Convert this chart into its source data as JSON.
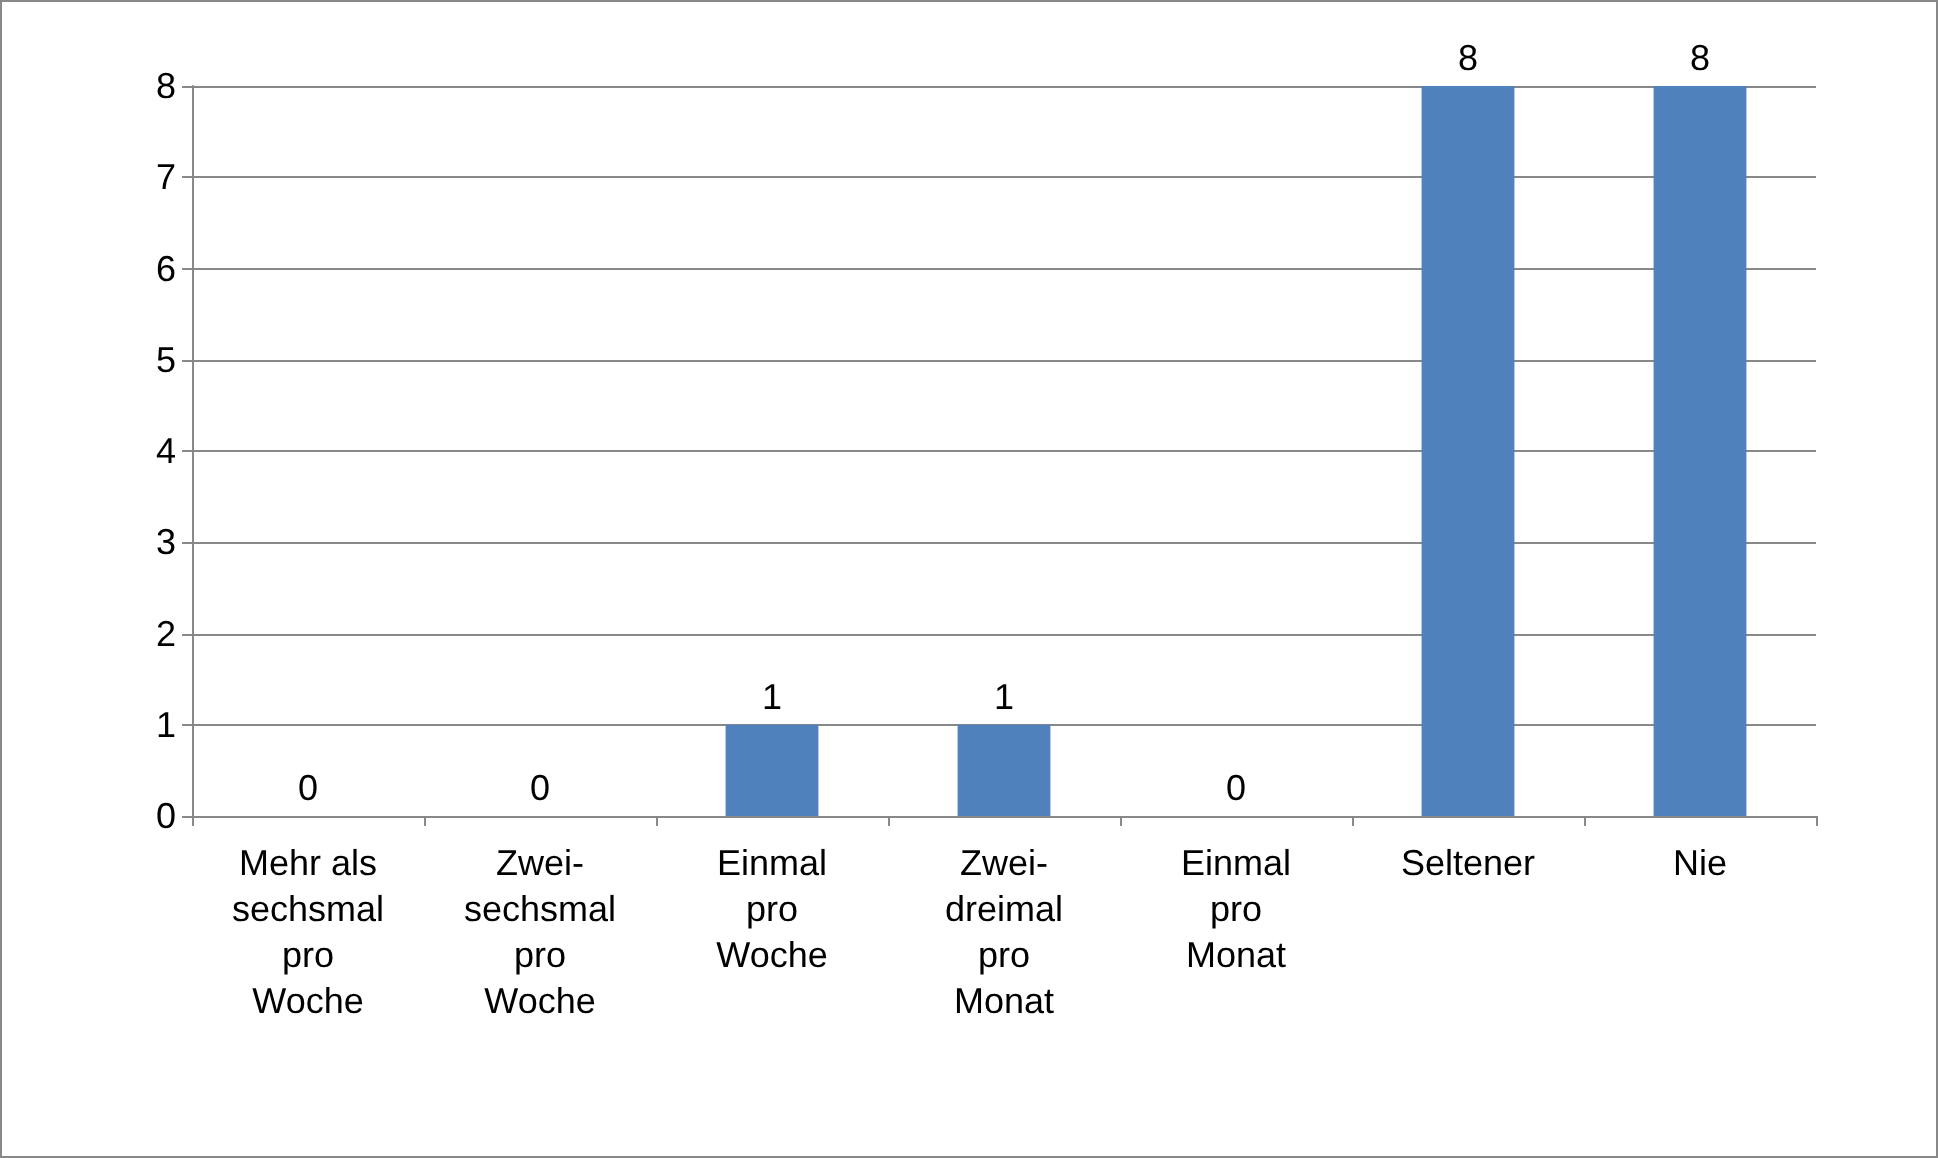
{
  "chart_data": {
    "type": "bar",
    "categories": [
      "Mehr als\nsechsmal\npro\nWoche",
      "Zwei-\nsechsmal\npro\nWoche",
      "Einmal\npro\nWoche",
      "Zwei-\ndreimal\npro\nMonat",
      "Einmal\npro\nMonat",
      "Seltener",
      "Nie"
    ],
    "values": [
      0,
      0,
      1,
      1,
      0,
      8,
      8
    ],
    "color": "#4f81bd",
    "ylim": [
      0,
      8
    ],
    "yticks": [
      0,
      1,
      2,
      3,
      4,
      5,
      6,
      7,
      8
    ],
    "grid": "y",
    "data_labels": true
  }
}
